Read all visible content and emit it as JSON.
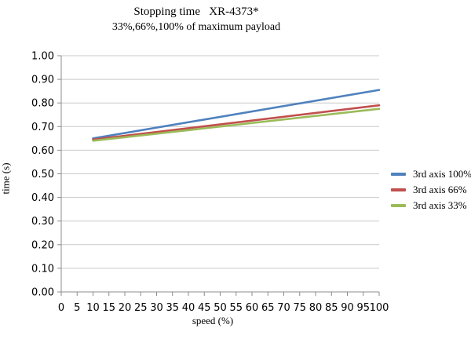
{
  "chart_data": {
    "type": "line",
    "title": "Stopping time   XR-4373*",
    "subtitle": "33%,66%,100% of maximum payload",
    "xlabel": "speed (%)",
    "ylabel": "time (s)",
    "xlim": [
      0,
      100
    ],
    "ylim": [
      0.0,
      1.0
    ],
    "x_tick_step": 5,
    "y_tick_step": 0.1,
    "y_tick_decimals": 2,
    "grid": "horizontal",
    "legend_position": "right",
    "axis_color": "#8c8c8c",
    "grid_color": "#c9c9c9",
    "series": [
      {
        "name": "3rd axis 100%",
        "color": "#4F81BD",
        "x": [
          10,
          100
        ],
        "y": [
          0.65,
          0.855
        ]
      },
      {
        "name": "3rd axis 66%",
        "color": "#C0504D",
        "x": [
          10,
          100
        ],
        "y": [
          0.645,
          0.79
        ]
      },
      {
        "name": "3rd axis 33%",
        "color": "#9BBB59",
        "x": [
          10,
          100
        ],
        "y": [
          0.64,
          0.775
        ]
      }
    ]
  }
}
